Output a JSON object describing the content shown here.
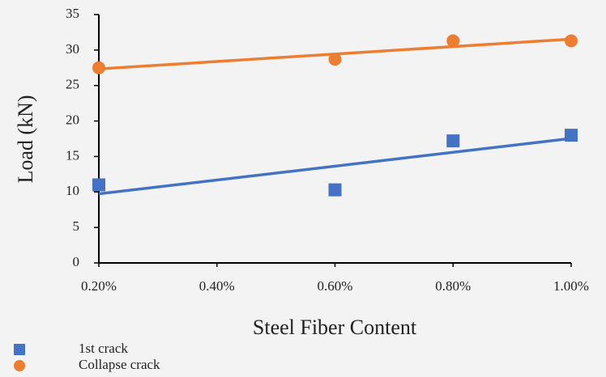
{
  "chart_data": {
    "type": "scatter",
    "x_label": "Steel Fiber Content",
    "y_label": "Load (kN)",
    "series": [
      {
        "name": "1st crack",
        "color": "#4472c4",
        "marker": "square",
        "x": [
          0.2,
          0.6,
          0.8,
          1.0
        ],
        "values": [
          11,
          10.3,
          17.2,
          18
        ]
      },
      {
        "name": "Collapse crack",
        "color": "#ed7d31",
        "marker": "circle",
        "x": [
          0.2,
          0.6,
          0.8,
          1.0
        ],
        "values": [
          27.5,
          28.7,
          31.3,
          31.3
        ]
      }
    ],
    "trendline": true,
    "xlim": [
      0.2,
      1.0
    ],
    "xticks": [
      {
        "value": 0.2,
        "label": "0.20%"
      },
      {
        "value": 0.4,
        "label": "0.40%"
      },
      {
        "value": 0.6,
        "label": "0.60%"
      },
      {
        "value": 0.8,
        "label": "0.80%"
      },
      {
        "value": 1.0,
        "label": "1.00%"
      }
    ],
    "ylim": [
      0,
      35
    ],
    "yticks": [
      0,
      5,
      10,
      15,
      20,
      25,
      30,
      35
    ],
    "grid": false,
    "legend": "bottom-left"
  }
}
